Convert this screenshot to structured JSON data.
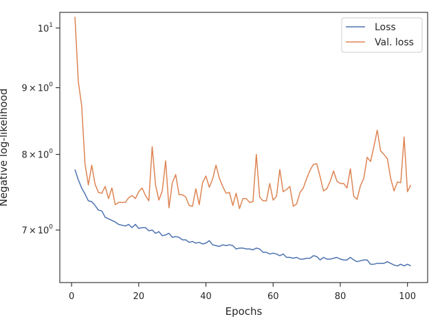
{
  "chart_data": {
    "type": "line",
    "xlabel": "Epochs",
    "ylabel": "Negative log-likelihood",
    "yscale": "log",
    "xlim": [
      -3.5,
      106
    ],
    "ylim": [
      6.38,
      10.28
    ],
    "x_ticks": [
      {
        "value": 0,
        "label": "0"
      },
      {
        "value": 20,
        "label": "20"
      },
      {
        "value": 40,
        "label": "40"
      },
      {
        "value": 60,
        "label": "60"
      },
      {
        "value": 80,
        "label": "80"
      },
      {
        "value": 100,
        "label": "100"
      }
    ],
    "y_ticks": [
      {
        "value": 7,
        "base": "7",
        "times": "×",
        "tenexp": "10",
        "exp": "0"
      },
      {
        "value": 8,
        "base": "8",
        "times": "×",
        "tenexp": "10",
        "exp": "0"
      },
      {
        "value": 9,
        "base": "9",
        "times": "×",
        "tenexp": "10",
        "exp": "0"
      },
      {
        "value": 10,
        "base": "",
        "times": "",
        "tenexp": "10",
        "exp": "1"
      }
    ],
    "legend_position": "top-right",
    "grid": false,
    "x": [
      1,
      2,
      3,
      4,
      5,
      6,
      7,
      8,
      9,
      10,
      11,
      12,
      13,
      14,
      15,
      16,
      17,
      18,
      19,
      20,
      21,
      22,
      23,
      24,
      25,
      26,
      27,
      28,
      29,
      30,
      31,
      32,
      33,
      34,
      35,
      36,
      37,
      38,
      39,
      40,
      41,
      42,
      43,
      44,
      45,
      46,
      47,
      48,
      49,
      50,
      51,
      52,
      53,
      54,
      55,
      56,
      57,
      58,
      59,
      60,
      61,
      62,
      63,
      64,
      65,
      66,
      67,
      68,
      69,
      70,
      71,
      72,
      73,
      74,
      75,
      76,
      77,
      78,
      79,
      80,
      81,
      82,
      83,
      84,
      85,
      86,
      87,
      88,
      89,
      90,
      91,
      92,
      93,
      94,
      95,
      96,
      97,
      98,
      99,
      100,
      101
    ],
    "series": [
      {
        "name": "Loss",
        "color": "#4c72b0",
        "values": [
          7.79,
          7.65,
          7.54,
          7.46,
          7.37,
          7.36,
          7.31,
          7.25,
          7.24,
          7.16,
          7.14,
          7.12,
          7.1,
          7.07,
          7.06,
          7.05,
          7.07,
          7.03,
          7.07,
          7.02,
          7.03,
          7.03,
          6.99,
          7.0,
          6.96,
          6.98,
          6.93,
          6.94,
          6.96,
          6.91,
          6.92,
          6.91,
          6.88,
          6.88,
          6.85,
          6.86,
          6.84,
          6.85,
          6.83,
          6.84,
          6.87,
          6.82,
          6.81,
          6.8,
          6.82,
          6.81,
          6.82,
          6.81,
          6.77,
          6.78,
          6.78,
          6.77,
          6.77,
          6.76,
          6.78,
          6.77,
          6.73,
          6.73,
          6.71,
          6.72,
          6.71,
          6.69,
          6.71,
          6.67,
          6.67,
          6.66,
          6.67,
          6.65,
          6.65,
          6.66,
          6.66,
          6.69,
          6.68,
          6.64,
          6.67,
          6.65,
          6.65,
          6.66,
          6.67,
          6.65,
          6.64,
          6.64,
          6.67,
          6.64,
          6.62,
          6.63,
          6.64,
          6.64,
          6.59,
          6.59,
          6.6,
          6.6,
          6.6,
          6.62,
          6.6,
          6.58,
          6.57,
          6.59,
          6.57,
          6.59,
          6.57
        ]
      },
      {
        "name": "Val. loss",
        "color": "#dd8452",
        "values": [
          10.2,
          9.1,
          8.72,
          7.87,
          7.58,
          7.85,
          7.59,
          7.48,
          7.47,
          7.56,
          7.4,
          7.54,
          7.32,
          7.35,
          7.35,
          7.35,
          7.41,
          7.44,
          7.4,
          7.49,
          7.54,
          7.44,
          7.37,
          8.11,
          7.58,
          7.38,
          7.5,
          7.91,
          7.28,
          7.61,
          7.72,
          7.45,
          7.45,
          7.42,
          7.31,
          7.3,
          7.53,
          7.32,
          7.61,
          7.7,
          7.55,
          7.66,
          7.85,
          7.67,
          7.56,
          7.47,
          7.48,
          7.31,
          7.47,
          7.27,
          7.4,
          7.4,
          7.35,
          7.36,
          8.0,
          7.42,
          7.37,
          7.37,
          7.6,
          7.38,
          7.43,
          7.79,
          7.49,
          7.52,
          7.56,
          7.3,
          7.33,
          7.48,
          7.54,
          7.67,
          7.78,
          7.86,
          7.87,
          7.69,
          7.5,
          7.53,
          7.63,
          7.77,
          7.63,
          7.6,
          7.6,
          7.54,
          7.8,
          7.43,
          7.39,
          7.57,
          7.67,
          7.96,
          7.9,
          8.11,
          8.35,
          8.05,
          8.0,
          7.94,
          7.67,
          7.5,
          7.62,
          7.61,
          8.25,
          7.49,
          7.58
        ]
      }
    ]
  }
}
